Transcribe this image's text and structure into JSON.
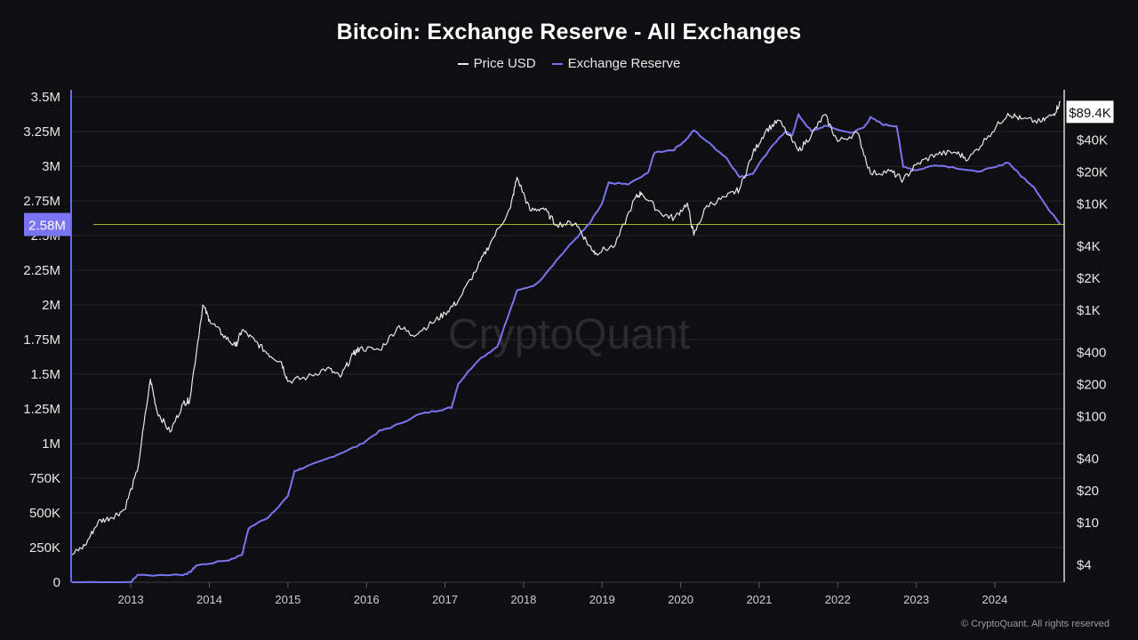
{
  "chart": {
    "title": "Bitcoin: Exchange Reserve - All Exchanges",
    "footer": "© CryptoQuant. All rights reserved",
    "watermark": "CryptoQuant",
    "legend": [
      {
        "name": "Price USD",
        "color": "#e8e8e8"
      },
      {
        "name": "Exchange Reserve",
        "color": "#7b74f2"
      }
    ],
    "current_reserve_label": "2.58M",
    "current_price_label": "$89.4K"
  },
  "chart_data": {
    "type": "line",
    "title": "Bitcoin: Exchange Reserve - All Exchanges",
    "x_ticks": [
      "2013",
      "2014",
      "2015",
      "2016",
      "2017",
      "2018",
      "2019",
      "2020",
      "2021",
      "2022",
      "2023",
      "2024"
    ],
    "x_range": [
      "2012-04",
      "2024-11"
    ],
    "y_left": {
      "ticks": [
        "3.5M",
        "3.25M",
        "3M",
        "2.75M",
        "2.5M",
        "2.25M",
        "2M",
        "1.75M",
        "1.5M",
        "1.25M",
        "1M",
        "750K",
        "500K",
        "250K",
        "0"
      ],
      "range": [
        0,
        3500000
      ]
    },
    "y_right": {
      "scale": "log",
      "ticks": [
        "$40K",
        "$20K",
        "$10K",
        "$4K",
        "$2K",
        "$1K",
        "$400",
        "$200",
        "$100",
        "$40",
        "$20",
        "$10",
        "$4"
      ],
      "range": [
        2.7,
        100000
      ]
    },
    "reference_line_value": 2580000,
    "grid": true,
    "legend_position": "top-center",
    "series": [
      {
        "name": "Exchange Reserve",
        "axis": "left",
        "color": "#7b74f2",
        "points": [
          [
            "2012-04",
            0
          ],
          [
            "2013-01",
            1000
          ],
          [
            "2013-02",
            50000
          ],
          [
            "2013-09",
            55000
          ],
          [
            "2013-10",
            70000
          ],
          [
            "2013-11",
            120000
          ],
          [
            "2014-04",
            160000
          ],
          [
            "2014-06",
            200000
          ],
          [
            "2014-07",
            390000
          ],
          [
            "2014-10",
            470000
          ],
          [
            "2015-01",
            620000
          ],
          [
            "2015-02",
            800000
          ],
          [
            "2015-03",
            820000
          ],
          [
            "2015-06",
            870000
          ],
          [
            "2015-09",
            930000
          ],
          [
            "2015-12",
            990000
          ],
          [
            "2016-03",
            1090000
          ],
          [
            "2016-05",
            1120000
          ],
          [
            "2016-09",
            1210000
          ],
          [
            "2016-12",
            1240000
          ],
          [
            "2017-02",
            1260000
          ],
          [
            "2017-03",
            1430000
          ],
          [
            "2017-06",
            1600000
          ],
          [
            "2017-09",
            1700000
          ],
          [
            "2017-12",
            2100000
          ],
          [
            "2018-03",
            2150000
          ],
          [
            "2018-06",
            2320000
          ],
          [
            "2018-09",
            2480000
          ],
          [
            "2018-11",
            2580000
          ],
          [
            "2019-01",
            2730000
          ],
          [
            "2019-02",
            2880000
          ],
          [
            "2019-05",
            2870000
          ],
          [
            "2019-08",
            2950000
          ],
          [
            "2019-09",
            3100000
          ],
          [
            "2019-12",
            3120000
          ],
          [
            "2020-02",
            3200000
          ],
          [
            "2020-03",
            3260000
          ],
          [
            "2020-06",
            3140000
          ],
          [
            "2020-08",
            3060000
          ],
          [
            "2020-10",
            2920000
          ],
          [
            "2020-12",
            2950000
          ],
          [
            "2021-03",
            3150000
          ],
          [
            "2021-05",
            3250000
          ],
          [
            "2021-06",
            3220000
          ],
          [
            "2021-07",
            3370000
          ],
          [
            "2021-09",
            3250000
          ],
          [
            "2021-11",
            3290000
          ],
          [
            "2022-03",
            3240000
          ],
          [
            "2022-05",
            3280000
          ],
          [
            "2022-06",
            3350000
          ],
          [
            "2022-08",
            3300000
          ],
          [
            "2022-10",
            3290000
          ],
          [
            "2022-11",
            3000000
          ],
          [
            "2023-01",
            2970000
          ],
          [
            "2023-04",
            3010000
          ],
          [
            "2023-07",
            2990000
          ],
          [
            "2023-10",
            2960000
          ],
          [
            "2024-01",
            2990000
          ],
          [
            "2024-03",
            3030000
          ],
          [
            "2024-05",
            2930000
          ],
          [
            "2024-07",
            2850000
          ],
          [
            "2024-09",
            2700000
          ],
          [
            "2024-10",
            2650000
          ],
          [
            "2024-11",
            2580000
          ]
        ]
      },
      {
        "name": "Price USD",
        "axis": "right",
        "color": "#e8e8e8",
        "points": [
          [
            "2012-04",
            4.9
          ],
          [
            "2012-06",
            6
          ],
          [
            "2012-08",
            10
          ],
          [
            "2012-10",
            11
          ],
          [
            "2012-12",
            13
          ],
          [
            "2013-02",
            30
          ],
          [
            "2013-04",
            220
          ],
          [
            "2013-05",
            110
          ],
          [
            "2013-07",
            70
          ],
          [
            "2013-09",
            130
          ],
          [
            "2013-10",
            140
          ],
          [
            "2013-12",
            1100
          ],
          [
            "2014-01",
            800
          ],
          [
            "2014-03",
            580
          ],
          [
            "2014-05",
            450
          ],
          [
            "2014-06",
            640
          ],
          [
            "2014-08",
            500
          ],
          [
            "2014-10",
            380
          ],
          [
            "2014-12",
            320
          ],
          [
            "2015-01",
            210
          ],
          [
            "2015-04",
            230
          ],
          [
            "2015-07",
            280
          ],
          [
            "2015-09",
            230
          ],
          [
            "2015-11",
            380
          ],
          [
            "2015-12",
            430
          ],
          [
            "2016-03",
            415
          ],
          [
            "2016-06",
            700
          ],
          [
            "2016-08",
            570
          ],
          [
            "2016-11",
            740
          ],
          [
            "2017-01",
            920
          ],
          [
            "2017-03",
            1200
          ],
          [
            "2017-06",
            2500
          ],
          [
            "2017-08",
            4300
          ],
          [
            "2017-11",
            9000
          ],
          [
            "2017-12",
            17500
          ],
          [
            "2018-02",
            8500
          ],
          [
            "2018-04",
            9000
          ],
          [
            "2018-06",
            6300
          ],
          [
            "2018-09",
            6500
          ],
          [
            "2018-11",
            4000
          ],
          [
            "2018-12",
            3400
          ],
          [
            "2019-03",
            4000
          ],
          [
            "2019-06",
            11000
          ],
          [
            "2019-07",
            12500
          ],
          [
            "2019-10",
            8000
          ],
          [
            "2019-12",
            7200
          ],
          [
            "2020-02",
            10000
          ],
          [
            "2020-03",
            5000
          ],
          [
            "2020-05",
            9500
          ],
          [
            "2020-08",
            11500
          ],
          [
            "2020-10",
            13500
          ],
          [
            "2020-12",
            29000
          ],
          [
            "2021-02",
            48000
          ],
          [
            "2021-04",
            60000
          ],
          [
            "2021-07",
            31000
          ],
          [
            "2021-09",
            44000
          ],
          [
            "2021-11",
            68000
          ],
          [
            "2022-01",
            38000
          ],
          [
            "2022-04",
            46000
          ],
          [
            "2022-06",
            19000
          ],
          [
            "2022-09",
            20000
          ],
          [
            "2022-11",
            16500
          ],
          [
            "2023-01",
            23000
          ],
          [
            "2023-04",
            29000
          ],
          [
            "2023-07",
            30000
          ],
          [
            "2023-09",
            26000
          ],
          [
            "2023-12",
            43000
          ],
          [
            "2024-03",
            70000
          ],
          [
            "2024-05",
            62000
          ],
          [
            "2024-08",
            58000
          ],
          [
            "2024-10",
            69000
          ],
          [
            "2024-11",
            89400
          ]
        ]
      }
    ]
  }
}
